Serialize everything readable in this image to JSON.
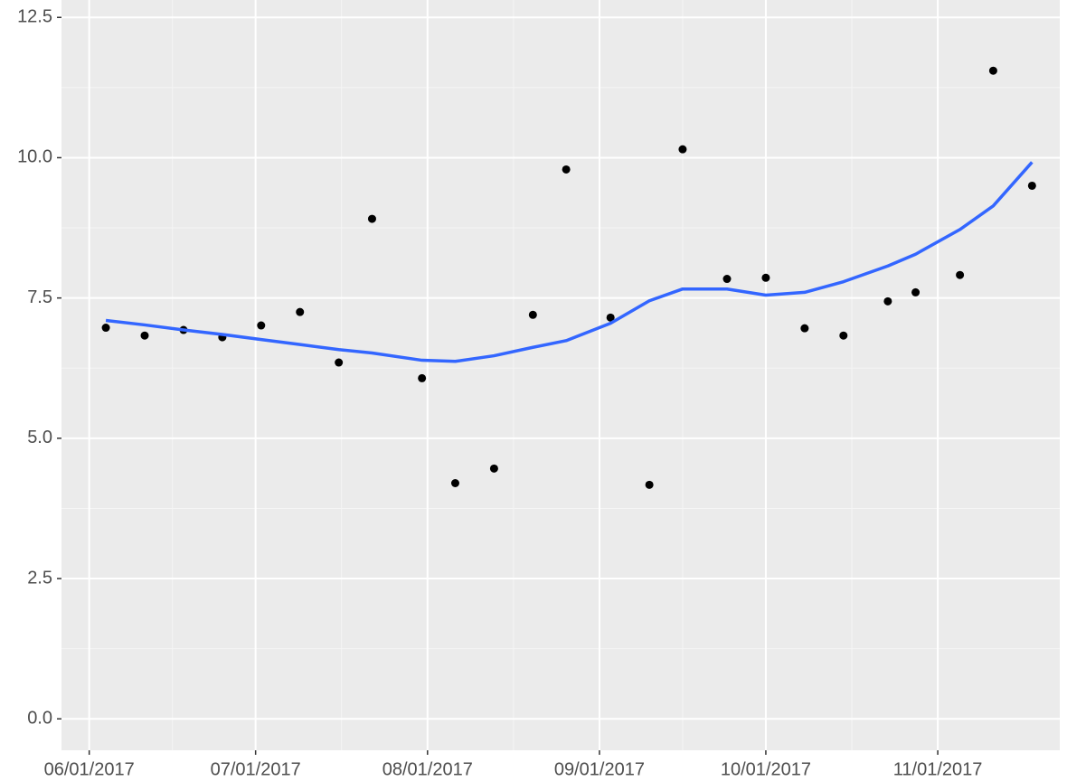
{
  "chart_data": {
    "type": "scatter",
    "x": [
      "2017-06-04",
      "2017-06-11",
      "2017-06-18",
      "2017-06-25",
      "2017-07-02",
      "2017-07-09",
      "2017-07-16",
      "2017-07-22",
      "2017-07-31",
      "2017-08-06",
      "2017-08-13",
      "2017-08-20",
      "2017-08-26",
      "2017-09-03",
      "2017-09-10",
      "2017-09-16",
      "2017-09-24",
      "2017-10-01",
      "2017-10-08",
      "2017-10-15",
      "2017-10-23",
      "2017-10-28",
      "2017-11-05",
      "2017-11-11",
      "2017-11-18"
    ],
    "values": [
      6.97,
      6.83,
      6.93,
      6.8,
      7.01,
      7.25,
      6.35,
      8.91,
      6.07,
      4.2,
      4.46,
      7.2,
      9.79,
      7.15,
      4.17,
      10.15,
      7.84,
      7.86,
      6.96,
      6.83,
      7.44,
      7.6,
      7.91,
      11.55,
      9.5
    ],
    "color": "#000000",
    "smooth": {
      "color": "#3366ff",
      "values": [
        7.1,
        7.02,
        6.93,
        6.85,
        6.76,
        6.67,
        6.58,
        6.52,
        6.39,
        6.37,
        6.47,
        6.62,
        6.74,
        7.05,
        7.45,
        7.66,
        7.66,
        7.55,
        7.6,
        7.79,
        8.07,
        8.28,
        8.72,
        9.14,
        9.92
      ]
    },
    "xlim": [
      "2017-05-27",
      "2017-11-23"
    ],
    "xticks": [
      {
        "value": "2017-06-01",
        "label": "06/01/2017"
      },
      {
        "value": "2017-07-01",
        "label": "07/01/2017"
      },
      {
        "value": "2017-08-01",
        "label": "08/01/2017"
      },
      {
        "value": "2017-09-01",
        "label": "09/01/2017"
      },
      {
        "value": "2017-10-01",
        "label": "10/01/2017"
      },
      {
        "value": "2017-11-01",
        "label": "11/01/2017"
      }
    ],
    "ylim": [
      -0.56,
      12.81
    ],
    "yticks": [
      {
        "value": 0,
        "label": "0.0"
      },
      {
        "value": 2.5,
        "label": "2.5"
      },
      {
        "value": 5,
        "label": "5.0"
      },
      {
        "value": 7.5,
        "label": "7.5"
      },
      {
        "value": 10,
        "label": "10.0"
      },
      {
        "value": 12.5,
        "label": "12.5"
      }
    ],
    "grid": true
  }
}
